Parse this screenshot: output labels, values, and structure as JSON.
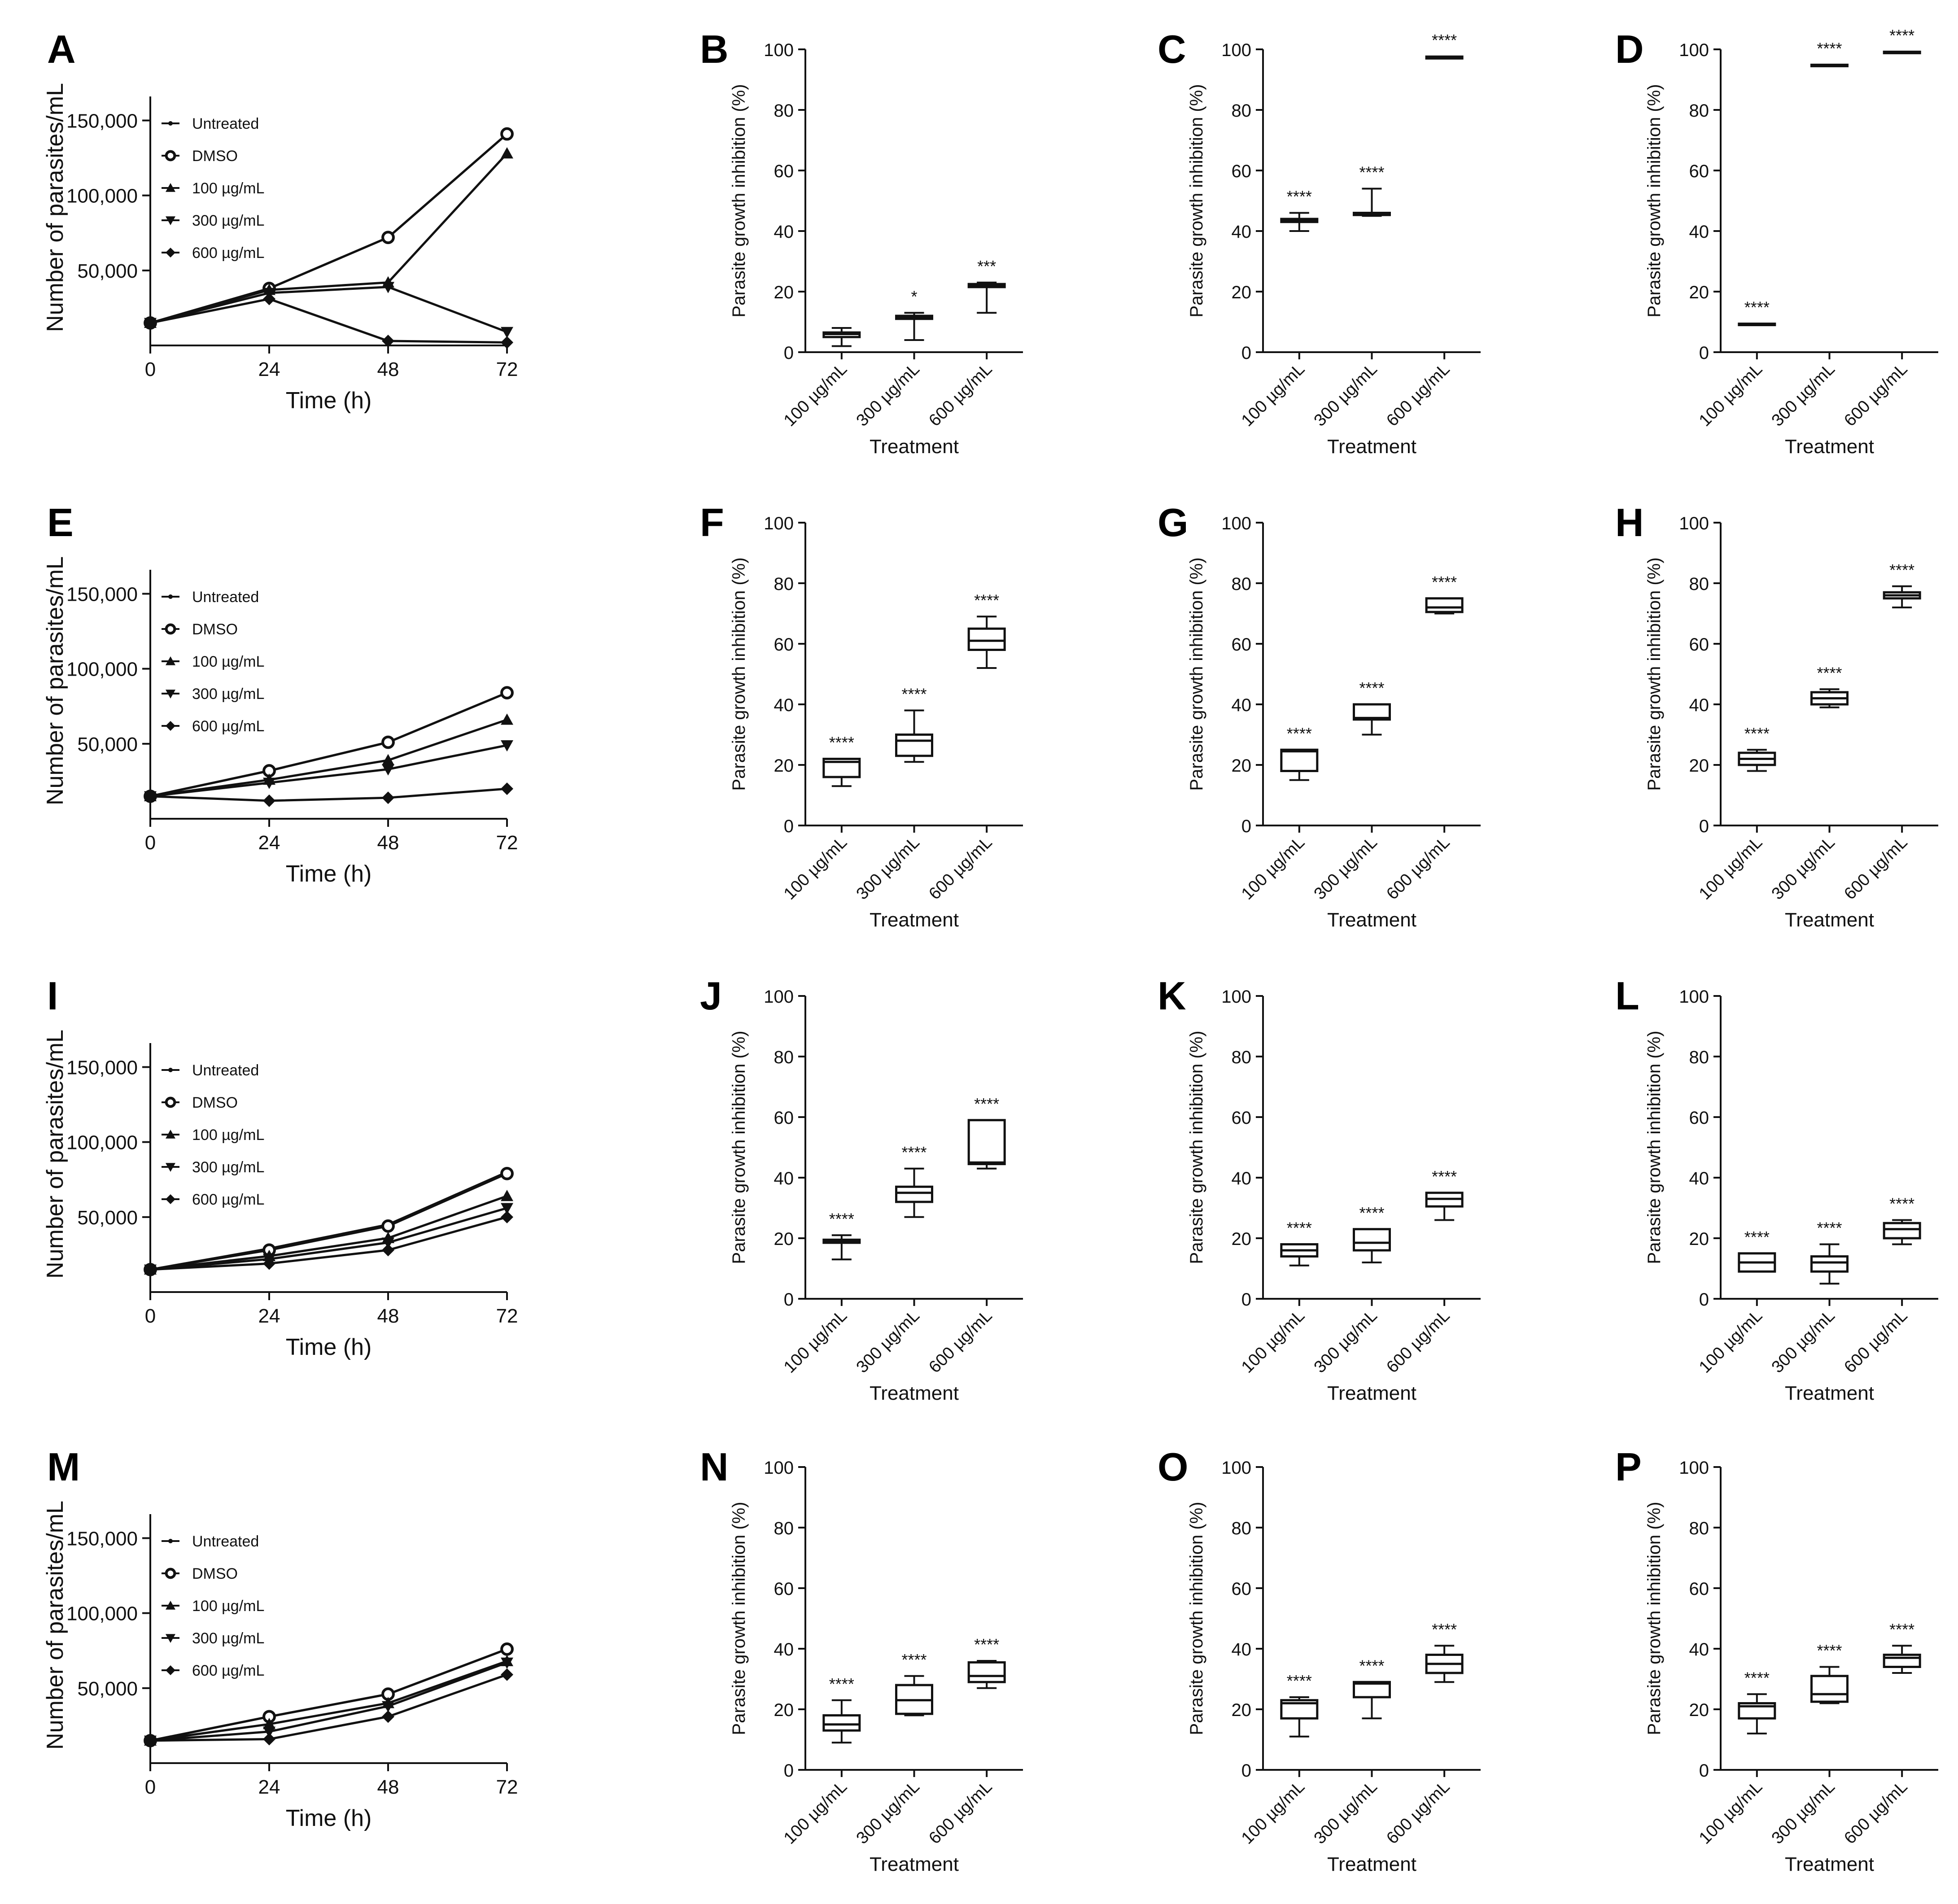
{
  "chart_data": [
    {
      "panel": "A",
      "type": "line",
      "xlabel": "Time (h)",
      "ylabel": "Number of parasites/mL",
      "x": [
        0,
        24,
        48,
        72
      ],
      "xticks": [
        "0",
        "24",
        "48",
        "72"
      ],
      "ylim": [
        0,
        160000
      ],
      "yticks": [
        {
          "v": 50000,
          "t": "50,000"
        },
        {
          "v": 100000,
          "t": "100,000"
        },
        {
          "v": 150000,
          "t": "150,000"
        }
      ],
      "series": [
        {
          "name": "Untreated",
          "marker": "dot",
          "values": [
            15000,
            38000,
            72000,
            141000
          ]
        },
        {
          "name": "DMSO",
          "marker": "circle",
          "values": [
            15000,
            38000,
            72000,
            141000
          ]
        },
        {
          "name": "100 µg/mL",
          "marker": "tri-up",
          "values": [
            15000,
            37000,
            42000,
            128000
          ]
        },
        {
          "name": "300 µg/mL",
          "marker": "tri-down",
          "values": [
            15000,
            35000,
            39000,
            9000
          ]
        },
        {
          "name": "600 µg/mL",
          "marker": "diamond",
          "values": [
            15000,
            31000,
            3000,
            2000
          ]
        }
      ]
    },
    {
      "panel": "B",
      "type": "box",
      "xlabel": "Treatment",
      "ylabel": "Parasite growth inhibition (%)",
      "categories": [
        "100 µg/mL",
        "300 µg/mL",
        "600 µg/mL"
      ],
      "ylim": [
        0,
        100
      ],
      "yticks": [
        "0",
        "20",
        "40",
        "60",
        "80",
        "100"
      ],
      "boxes": [
        {
          "min": 2,
          "q1": 5,
          "med": 6,
          "q3": 6.5,
          "max": 8,
          "sig": ""
        },
        {
          "min": 4,
          "q1": 11,
          "med": 11.5,
          "q3": 12,
          "max": 13,
          "sig": "*"
        },
        {
          "min": 13,
          "q1": 21.5,
          "med": 22,
          "q3": 22.5,
          "max": 23,
          "sig": "***"
        }
      ]
    },
    {
      "panel": "C",
      "type": "box",
      "xlabel": "Treatment",
      "ylabel": "Parasite growth inhibition (%)",
      "categories": [
        "100 µg/mL",
        "300 µg/mL",
        "600 µg/mL"
      ],
      "ylim": [
        0,
        100
      ],
      "yticks": [
        "0",
        "20",
        "40",
        "60",
        "80",
        "100"
      ],
      "boxes": [
        {
          "min": 40,
          "q1": 43,
          "med": 43.5,
          "q3": 44,
          "max": 46,
          "sig": "****"
        },
        {
          "min": 45,
          "q1": 45.3,
          "med": 45.5,
          "q3": 46,
          "max": 54,
          "sig": "****"
        },
        {
          "min": 97,
          "q1": 97,
          "med": 97.3,
          "q3": 97.6,
          "max": 97.6,
          "sig": "****"
        }
      ]
    },
    {
      "panel": "D",
      "type": "box",
      "xlabel": "Treatment",
      "ylabel": "Parasite growth inhibition (%)",
      "categories": [
        "100 µg/mL",
        "300 µg/mL",
        "600 µg/mL"
      ],
      "ylim": [
        0,
        100
      ],
      "yticks": [
        "0",
        "20",
        "40",
        "60",
        "80",
        "100"
      ],
      "boxes": [
        {
          "min": 9,
          "q1": 9,
          "med": 9.2,
          "q3": 9.4,
          "max": 9.4,
          "sig": "****"
        },
        {
          "min": 94.5,
          "q1": 94.5,
          "med": 94.7,
          "q3": 94.9,
          "max": 94.9,
          "sig": "****"
        },
        {
          "min": 98.8,
          "q1": 98.8,
          "med": 99,
          "q3": 99.2,
          "max": 99.2,
          "sig": "****"
        }
      ]
    },
    {
      "panel": "E",
      "type": "line",
      "xlabel": "Time (h)",
      "ylabel": "Number of parasites/mL",
      "x": [
        0,
        24,
        48,
        72
      ],
      "xticks": [
        "0",
        "24",
        "48",
        "72"
      ],
      "ylim": [
        0,
        160000
      ],
      "yticks": [
        {
          "v": 50000,
          "t": "50,000"
        },
        {
          "v": 100000,
          "t": "100,000"
        },
        {
          "v": 150000,
          "t": "150,000"
        }
      ],
      "series": [
        {
          "name": "Untreated",
          "marker": "dot",
          "values": [
            15000,
            32000,
            51000,
            84000
          ]
        },
        {
          "name": "DMSO",
          "marker": "circle",
          "values": [
            15000,
            32000,
            51000,
            84000
          ]
        },
        {
          "name": "100 µg/mL",
          "marker": "tri-up",
          "values": [
            15000,
            26000,
            39000,
            66000
          ]
        },
        {
          "name": "300 µg/mL",
          "marker": "tri-down",
          "values": [
            15000,
            24000,
            33000,
            49000
          ]
        },
        {
          "name": "600 µg/mL",
          "marker": "diamond",
          "values": [
            15000,
            12000,
            14000,
            20000
          ]
        }
      ]
    },
    {
      "panel": "F",
      "type": "box",
      "xlabel": "Treatment",
      "ylabel": "Parasite growth inhibition (%)",
      "categories": [
        "100 µg/mL",
        "300 µg/mL",
        "600 µg/mL"
      ],
      "ylim": [
        0,
        100
      ],
      "yticks": [
        "0",
        "20",
        "40",
        "60",
        "80",
        "100"
      ],
      "boxes": [
        {
          "min": 13,
          "q1": 16,
          "med": 21,
          "q3": 22,
          "max": 22,
          "sig": "****"
        },
        {
          "min": 21,
          "q1": 23,
          "med": 28,
          "q3": 30,
          "max": 38,
          "sig": "****"
        },
        {
          "min": 52,
          "q1": 58,
          "med": 61,
          "q3": 65,
          "max": 69,
          "sig": "****"
        }
      ]
    },
    {
      "panel": "G",
      "type": "box",
      "xlabel": "Treatment",
      "ylabel": "Parasite growth inhibition (%)",
      "categories": [
        "100 µg/mL",
        "300 µg/mL",
        "600 µg/mL"
      ],
      "ylim": [
        0,
        100
      ],
      "yticks": [
        "0",
        "20",
        "40",
        "60",
        "80",
        "100"
      ],
      "boxes": [
        {
          "min": 15,
          "q1": 18,
          "med": 24.5,
          "q3": 25,
          "max": 25,
          "sig": "****"
        },
        {
          "min": 30,
          "q1": 35,
          "med": 35.5,
          "q3": 40,
          "max": 40,
          "sig": "****"
        },
        {
          "min": 70,
          "q1": 70.5,
          "med": 72,
          "q3": 75,
          "max": 75,
          "sig": "****"
        }
      ]
    },
    {
      "panel": "H",
      "type": "box",
      "xlabel": "Treatment",
      "ylabel": "Parasite growth inhibition (%)",
      "categories": [
        "100 µg/mL",
        "300 µg/mL",
        "600 µg/mL"
      ],
      "ylim": [
        0,
        100
      ],
      "yticks": [
        "0",
        "20",
        "40",
        "60",
        "80",
        "100"
      ],
      "boxes": [
        {
          "min": 18,
          "q1": 20,
          "med": 22,
          "q3": 24,
          "max": 25,
          "sig": "****"
        },
        {
          "min": 39,
          "q1": 40,
          "med": 42,
          "q3": 44,
          "max": 45,
          "sig": "****"
        },
        {
          "min": 72,
          "q1": 75,
          "med": 76,
          "q3": 77,
          "max": 79,
          "sig": "****"
        }
      ]
    },
    {
      "panel": "I",
      "type": "line",
      "xlabel": "Time (h)",
      "ylabel": "Number of parasites/mL",
      "x": [
        0,
        24,
        48,
        72
      ],
      "xticks": [
        "0",
        "24",
        "48",
        "72"
      ],
      "ylim": [
        0,
        160000
      ],
      "yticks": [
        {
          "v": 50000,
          "t": "50,000"
        },
        {
          "v": 100000,
          "t": "100,000"
        },
        {
          "v": 150000,
          "t": "150,000"
        }
      ],
      "series": [
        {
          "name": "Untreated",
          "marker": "dot",
          "values": [
            15000,
            29000,
            45000,
            80000
          ]
        },
        {
          "name": "DMSO",
          "marker": "circle",
          "values": [
            15000,
            28000,
            44000,
            79000
          ]
        },
        {
          "name": "100 µg/mL",
          "marker": "tri-up",
          "values": [
            15000,
            24000,
            36000,
            64000
          ]
        },
        {
          "name": "300 µg/mL",
          "marker": "tri-down",
          "values": [
            15000,
            22000,
            33000,
            56000
          ]
        },
        {
          "name": "600 µg/mL",
          "marker": "diamond",
          "values": [
            15000,
            19000,
            28000,
            50000
          ]
        }
      ]
    },
    {
      "panel": "J",
      "type": "box",
      "xlabel": "Treatment",
      "ylabel": "Parasite growth inhibition (%)",
      "categories": [
        "100 µg/mL",
        "300 µg/mL",
        "600 µg/mL"
      ],
      "ylim": [
        0,
        100
      ],
      "yticks": [
        "0",
        "20",
        "40",
        "60",
        "80",
        "100"
      ],
      "boxes": [
        {
          "min": 13,
          "q1": 18.5,
          "med": 19,
          "q3": 19.5,
          "max": 21,
          "sig": "****"
        },
        {
          "min": 27,
          "q1": 32,
          "med": 35,
          "q3": 37,
          "max": 43,
          "sig": "****"
        },
        {
          "min": 43,
          "q1": 44.5,
          "med": 45,
          "q3": 59,
          "max": 59,
          "sig": "****"
        }
      ]
    },
    {
      "panel": "K",
      "type": "box",
      "xlabel": "Treatment",
      "ylabel": "Parasite growth inhibition (%)",
      "categories": [
        "100 µg/mL",
        "300 µg/mL",
        "600 µg/mL"
      ],
      "ylim": [
        0,
        100
      ],
      "yticks": [
        "0",
        "20",
        "40",
        "60",
        "80",
        "100"
      ],
      "boxes": [
        {
          "min": 11,
          "q1": 14,
          "med": 16,
          "q3": 18,
          "max": 18,
          "sig": "****"
        },
        {
          "min": 12,
          "q1": 16,
          "med": 18.5,
          "q3": 23,
          "max": 23,
          "sig": "****"
        },
        {
          "min": 26,
          "q1": 30.5,
          "med": 33,
          "q3": 35,
          "max": 35,
          "sig": "****"
        }
      ]
    },
    {
      "panel": "L",
      "type": "box",
      "xlabel": "Treatment",
      "ylabel": "Parasite growth inhibition (%)",
      "categories": [
        "100 µg/mL",
        "300 µg/mL",
        "600 µg/mL"
      ],
      "ylim": [
        0,
        100
      ],
      "yticks": [
        "0",
        "20",
        "40",
        "60",
        "80",
        "100"
      ],
      "boxes": [
        {
          "min": 9,
          "q1": 9,
          "med": 12,
          "q3": 15,
          "max": 15,
          "sig": "****"
        },
        {
          "min": 5,
          "q1": 9,
          "med": 12,
          "q3": 14,
          "max": 18,
          "sig": "****"
        },
        {
          "min": 18,
          "q1": 20,
          "med": 23,
          "q3": 25,
          "max": 26,
          "sig": "****"
        }
      ]
    },
    {
      "panel": "M",
      "type": "line",
      "xlabel": "Time (h)",
      "ylabel": "Number of parasites/mL",
      "x": [
        0,
        24,
        48,
        72
      ],
      "xticks": [
        "0",
        "24",
        "48",
        "72"
      ],
      "ylim": [
        0,
        160000
      ],
      "yticks": [
        {
          "v": 50000,
          "t": "50,000"
        },
        {
          "v": 100000,
          "t": "100,000"
        },
        {
          "v": 150000,
          "t": "150,000"
        }
      ],
      "series": [
        {
          "name": "Untreated",
          "marker": "dot",
          "values": [
            15000,
            31000,
            46000,
            76000
          ]
        },
        {
          "name": "DMSO",
          "marker": "circle",
          "values": [
            15000,
            31000,
            46000,
            76000
          ]
        },
        {
          "name": "100 µg/mL",
          "marker": "tri-up",
          "values": [
            15000,
            26000,
            40000,
            68000
          ]
        },
        {
          "name": "300 µg/mL",
          "marker": "tri-down",
          "values": [
            15000,
            21000,
            38000,
            67000
          ]
        },
        {
          "name": "600 µg/mL",
          "marker": "diamond",
          "values": [
            15000,
            16000,
            31000,
            59000
          ]
        }
      ]
    },
    {
      "panel": "N",
      "type": "box",
      "xlabel": "Treatment",
      "ylabel": "Parasite growth inhibition (%)",
      "categories": [
        "100 µg/mL",
        "300 µg/mL",
        "600 µg/mL"
      ],
      "ylim": [
        0,
        100
      ],
      "yticks": [
        "0",
        "20",
        "40",
        "60",
        "80",
        "100"
      ],
      "boxes": [
        {
          "min": 9,
          "q1": 13,
          "med": 15,
          "q3": 18,
          "max": 23,
          "sig": "****"
        },
        {
          "min": 18,
          "q1": 18.5,
          "med": 23,
          "q3": 28,
          "max": 31,
          "sig": "****"
        },
        {
          "min": 27,
          "q1": 29,
          "med": 31,
          "q3": 35.5,
          "max": 36,
          "sig": "****"
        }
      ]
    },
    {
      "panel": "O",
      "type": "box",
      "xlabel": "Treatment",
      "ylabel": "Parasite growth inhibition (%)",
      "categories": [
        "100 µg/mL",
        "300 µg/mL",
        "600 µg/mL"
      ],
      "ylim": [
        0,
        100
      ],
      "yticks": [
        "0",
        "20",
        "40",
        "60",
        "80",
        "100"
      ],
      "boxes": [
        {
          "min": 11,
          "q1": 17,
          "med": 22,
          "q3": 23,
          "max": 24,
          "sig": "****"
        },
        {
          "min": 17,
          "q1": 24,
          "med": 28.5,
          "q3": 29,
          "max": 29,
          "sig": "****"
        },
        {
          "min": 29,
          "q1": 32,
          "med": 35,
          "q3": 38,
          "max": 41,
          "sig": "****"
        }
      ]
    },
    {
      "panel": "P",
      "type": "box",
      "xlabel": "Treatment",
      "ylabel": "Parasite growth inhibition (%)",
      "categories": [
        "100 µg/mL",
        "300 µg/mL",
        "600 µg/mL"
      ],
      "ylim": [
        0,
        100
      ],
      "yticks": [
        "0",
        "20",
        "40",
        "60",
        "80",
        "100"
      ],
      "boxes": [
        {
          "min": 12,
          "q1": 17,
          "med": 21,
          "q3": 22,
          "max": 25,
          "sig": "****"
        },
        {
          "min": 22,
          "q1": 22.5,
          "med": 25,
          "q3": 31,
          "max": 34,
          "sig": "****"
        },
        {
          "min": 32,
          "q1": 34,
          "med": 37,
          "q3": 38,
          "max": 41,
          "sig": "****"
        }
      ]
    }
  ]
}
